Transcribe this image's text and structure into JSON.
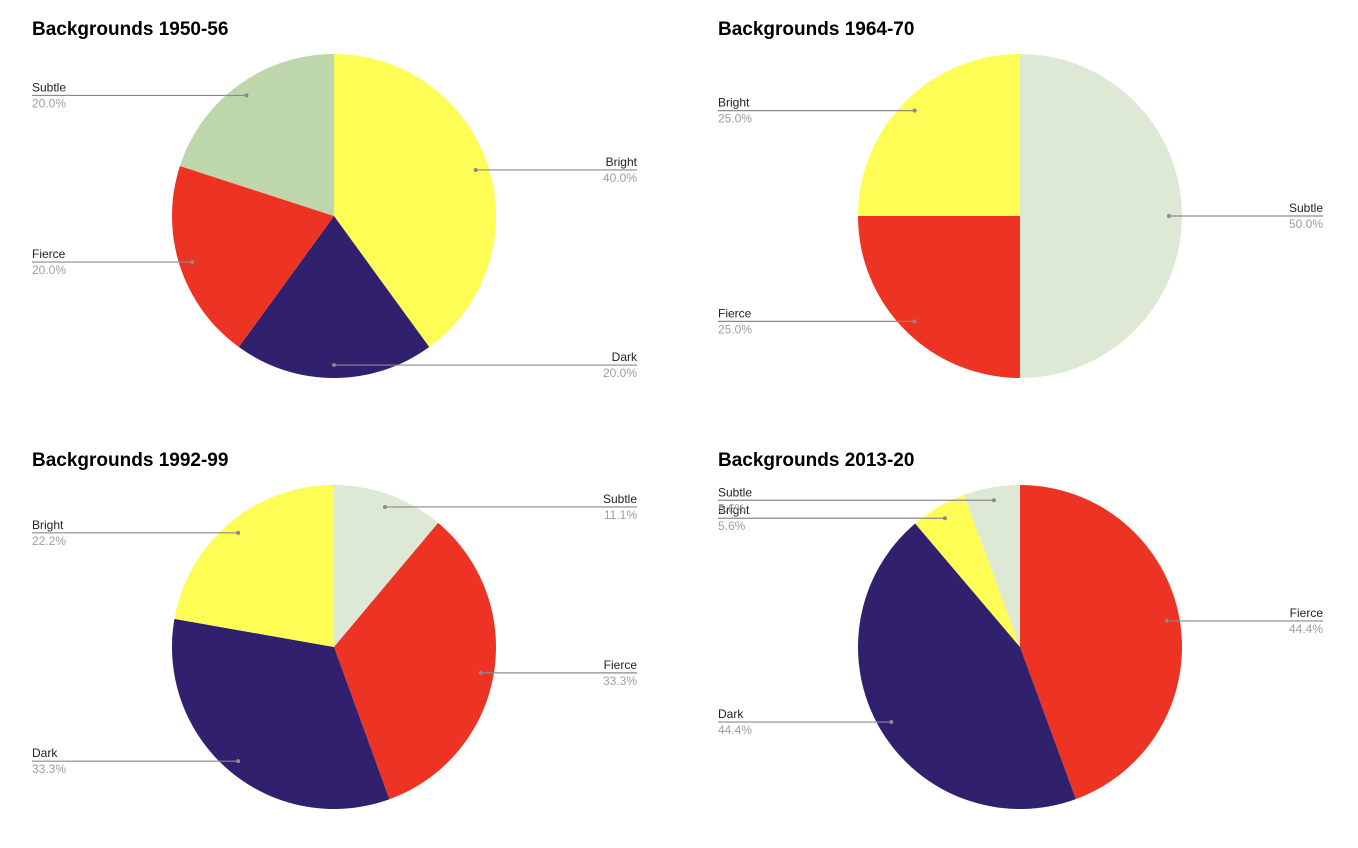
{
  "colors": {
    "Bright": "#fefd55",
    "Subtle": "#dde8d5",
    "Subtle_1950": "#bed6ab",
    "Fierce": "#ed3324",
    "Dark": "#31206d",
    "leader": "#8a8a8a"
  },
  "chart_data": [
    {
      "type": "pie",
      "title": "Backgrounds 1950-56",
      "slices": [
        {
          "label": "Bright",
          "value": 40.0,
          "pct": "40.0%",
          "color": "#fefd55",
          "side": "right"
        },
        {
          "label": "Dark",
          "value": 20.0,
          "pct": "20.0%",
          "color": "#31206d",
          "side": "right"
        },
        {
          "label": "Fierce",
          "value": 20.0,
          "pct": "20.0%",
          "color": "#ed3324",
          "side": "left"
        },
        {
          "label": "Subtle",
          "value": 20.0,
          "pct": "20.0%",
          "color": "#bed6ab",
          "side": "left"
        }
      ]
    },
    {
      "type": "pie",
      "title": "Backgrounds 1964-70",
      "slices": [
        {
          "label": "Subtle",
          "value": 50.0,
          "pct": "50.0%",
          "color": "#dde8d5",
          "side": "right"
        },
        {
          "label": "Fierce",
          "value": 25.0,
          "pct": "25.0%",
          "color": "#ed3324",
          "side": "left"
        },
        {
          "label": "Bright",
          "value": 25.0,
          "pct": "25.0%",
          "color": "#fefd55",
          "side": "left"
        }
      ]
    },
    {
      "type": "pie",
      "title": "Backgrounds 1992-99",
      "slices": [
        {
          "label": "Subtle",
          "value": 11.1,
          "pct": "11.1%",
          "color": "#dde8d5",
          "side": "right"
        },
        {
          "label": "Fierce",
          "value": 33.3,
          "pct": "33.3%",
          "color": "#ed3324",
          "side": "right"
        },
        {
          "label": "Dark",
          "value": 33.3,
          "pct": "33.3%",
          "color": "#31206d",
          "side": "left"
        },
        {
          "label": "Bright",
          "value": 22.2,
          "pct": "22.2%",
          "color": "#fefd55",
          "side": "left"
        }
      ]
    },
    {
      "type": "pie",
      "title": "Backgrounds 2013-20",
      "slices": [
        {
          "label": "Fierce",
          "value": 44.4,
          "pct": "44.4%",
          "color": "#ed3324",
          "side": "right"
        },
        {
          "label": "Dark",
          "value": 44.4,
          "pct": "44.4%",
          "color": "#31206d",
          "side": "left"
        },
        {
          "label": "Bright",
          "value": 5.6,
          "pct": "5.6%",
          "color": "#fefd55",
          "side": "left"
        },
        {
          "label": "Subtle",
          "value": 5.6,
          "pct": "5.6%",
          "color": "#dde8d5",
          "side": "left"
        }
      ]
    }
  ]
}
